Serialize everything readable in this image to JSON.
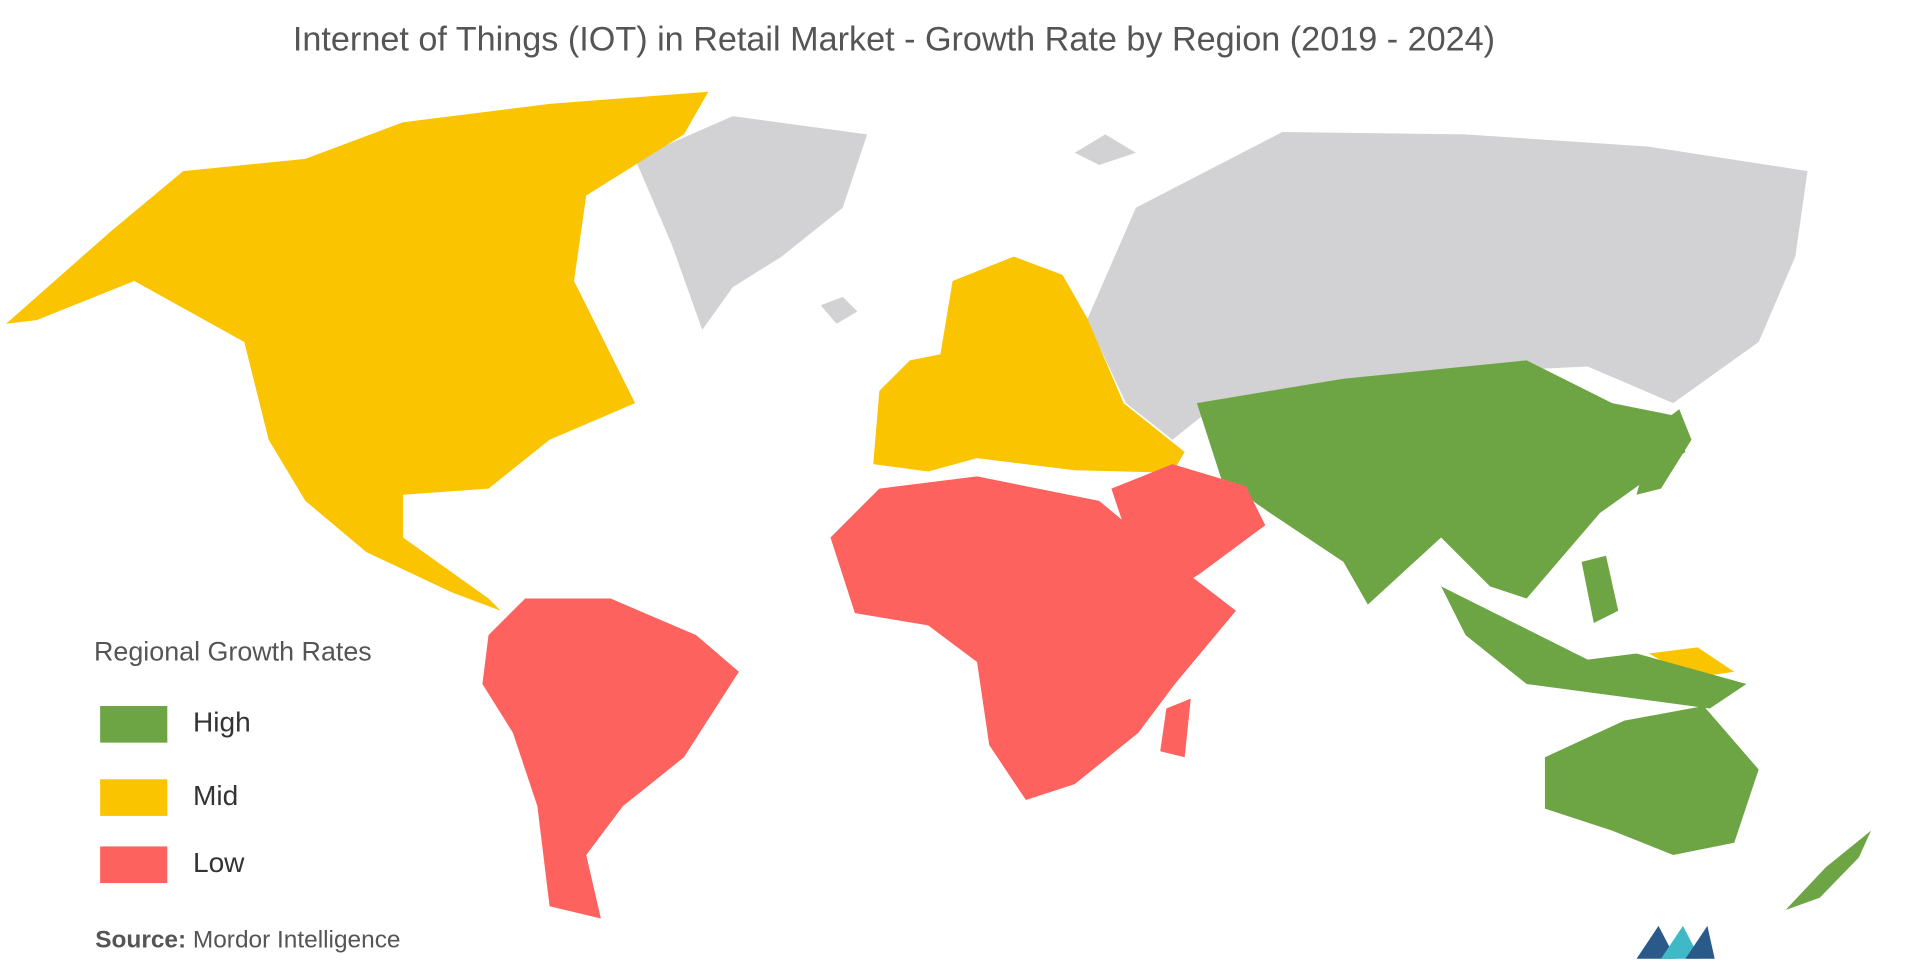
{
  "title": "Internet of Things (IOT) in Retail Market  - Growth Rate by Region (2019 - 2024)",
  "legend": {
    "title": "Regional Growth Rates",
    "items": [
      {
        "label": "High",
        "color": "#6ea544"
      },
      {
        "label": "Mid",
        "color": "#fbc400"
      },
      {
        "label": "Low",
        "color": "#fd625e"
      }
    ]
  },
  "source": {
    "label": "Source:",
    "text": "Mordor Intelligence"
  }
}
